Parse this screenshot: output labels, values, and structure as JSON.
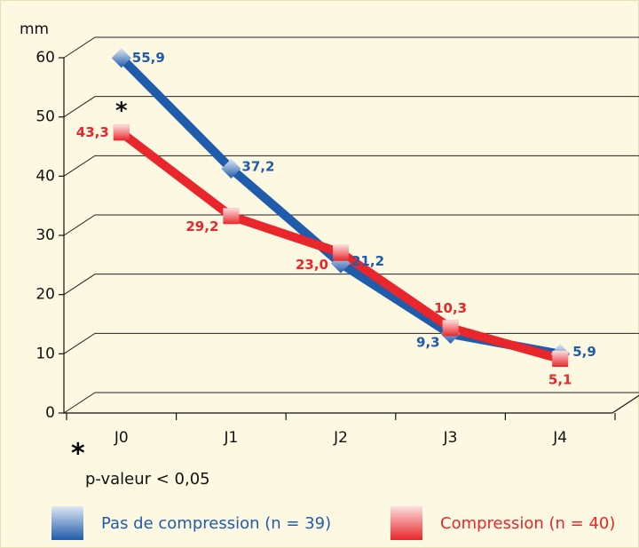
{
  "chart_data": {
    "type": "line",
    "y_axis_label": "mm",
    "categories": [
      "J0",
      "J1",
      "J2",
      "J3",
      "J4"
    ],
    "series": [
      {
        "name": "Pas de compression (n = 39)",
        "color": "#1f5cab",
        "marker": "diamond",
        "values": [
          55.9,
          37.2,
          21.2,
          9.3,
          5.9
        ],
        "value_labels": [
          "55,9",
          "37,2",
          "21,2",
          "9,3",
          "5,9"
        ]
      },
      {
        "name": "Compression (n = 40)",
        "color": "#e8262b",
        "marker": "square",
        "values": [
          43.3,
          29.2,
          23.0,
          10.3,
          5.1
        ],
        "value_labels": [
          "43,3",
          "29,2",
          "23,0",
          "10,3",
          "5,1"
        ]
      }
    ],
    "ylim": [
      0,
      60
    ],
    "yticks": [
      0,
      10,
      20,
      30,
      40,
      50,
      60
    ],
    "grid": true,
    "significance_marker": "*",
    "footnote": {
      "symbol": "*",
      "text": "p-valeur < 0,05"
    }
  }
}
